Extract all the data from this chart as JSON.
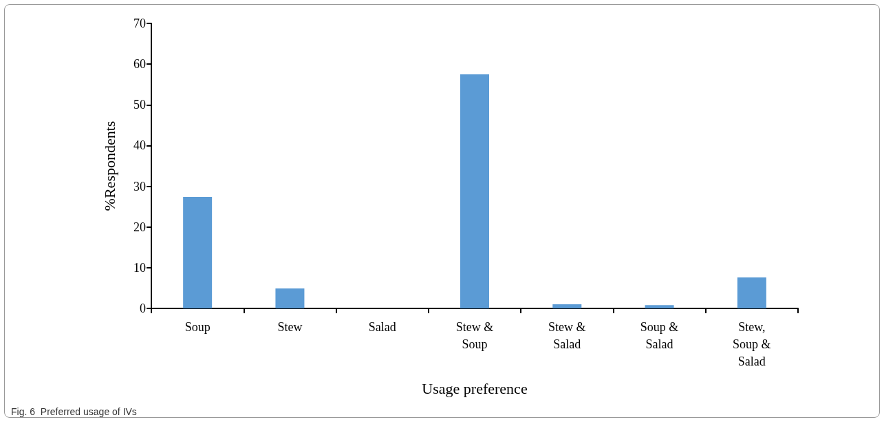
{
  "chart_data": {
    "type": "bar",
    "xlabel": "Usage preference",
    "ylabel": "%Respondents",
    "categories": [
      "Soup",
      "Stew",
      "Salad",
      "Stew &\nSoup",
      "Stew &\nSalad",
      "Soup &\nSalad",
      "Stew,\nSoup &\nSalad"
    ],
    "values": [
      27.4,
      4.9,
      0,
      57.5,
      1.0,
      0.8,
      7.6
    ],
    "color": "#5b9bd5",
    "ylim": [
      0,
      70
    ],
    "yticks": [
      0,
      10,
      20,
      30,
      40,
      50,
      60,
      70
    ],
    "grid": false,
    "annotations": [
      "Fig. 6  Preferred usage of IVs"
    ]
  }
}
